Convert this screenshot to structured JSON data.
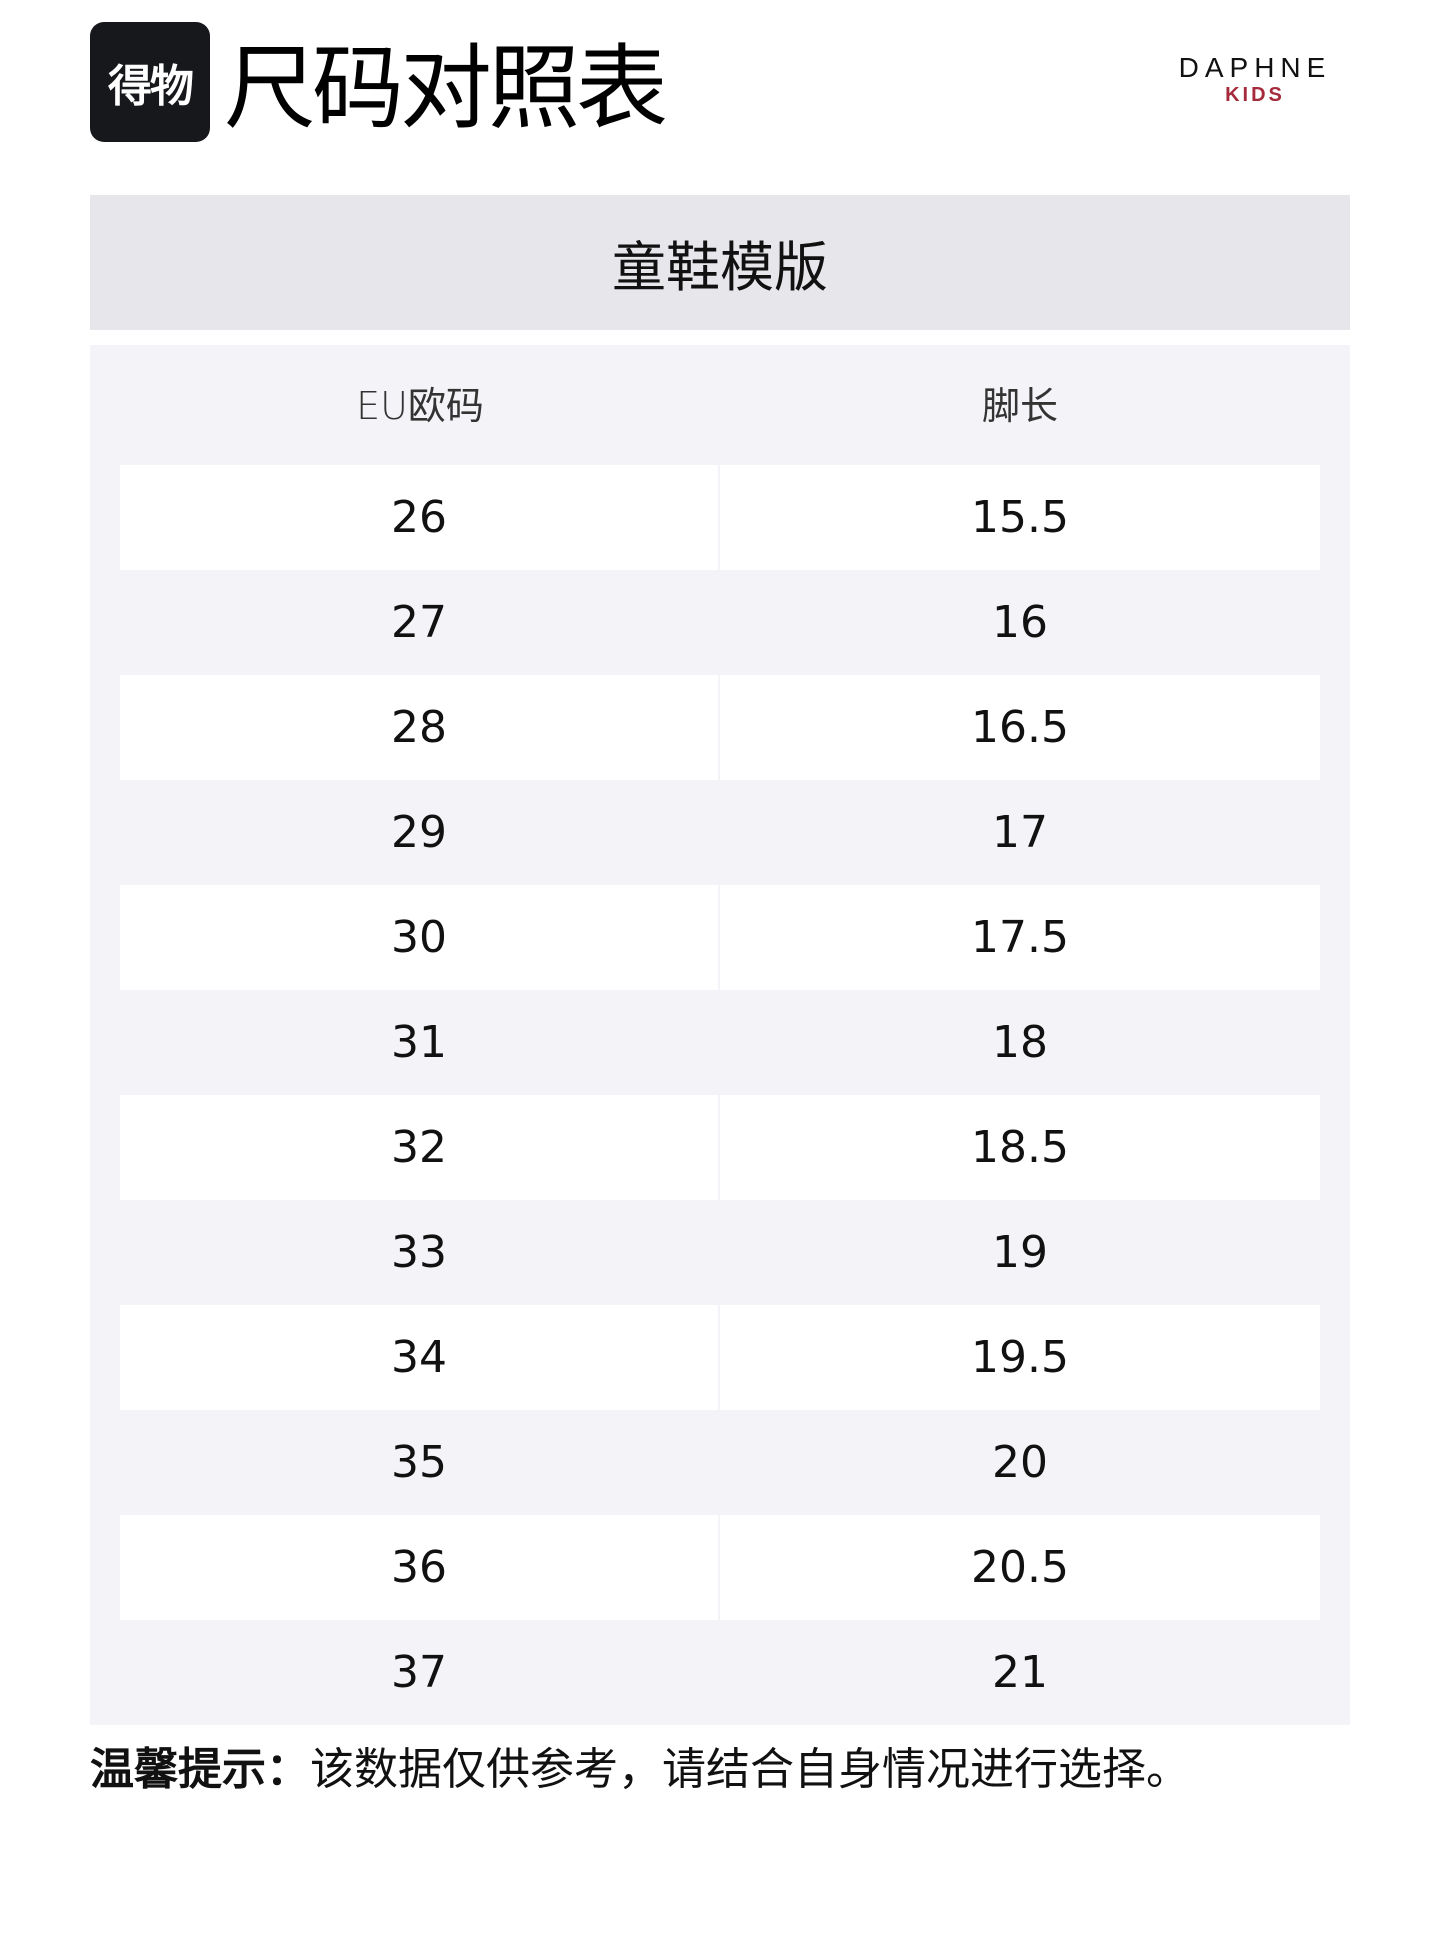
{
  "header": {
    "logo_text": "得物",
    "title": "尺码对照表",
    "brand": {
      "main": "DAPHNE",
      "sub": "KIDS",
      "sub_color": "#a52a3c"
    }
  },
  "section_title": "童鞋模版",
  "table": {
    "columns": [
      "EU欧码",
      "脚长"
    ],
    "rows": [
      [
        "26",
        "15.5"
      ],
      [
        "27",
        "16"
      ],
      [
        "28",
        "16.5"
      ],
      [
        "29",
        "17"
      ],
      [
        "30",
        "17.5"
      ],
      [
        "31",
        "18"
      ],
      [
        "32",
        "18.5"
      ],
      [
        "33",
        "19"
      ],
      [
        "34",
        "19.5"
      ],
      [
        "35",
        "20"
      ],
      [
        "36",
        "20.5"
      ],
      [
        "37",
        "21"
      ]
    ]
  },
  "note": {
    "label": "温馨提示：",
    "text": "该数据仅供参考，请结合自身情况进行选择。"
  }
}
